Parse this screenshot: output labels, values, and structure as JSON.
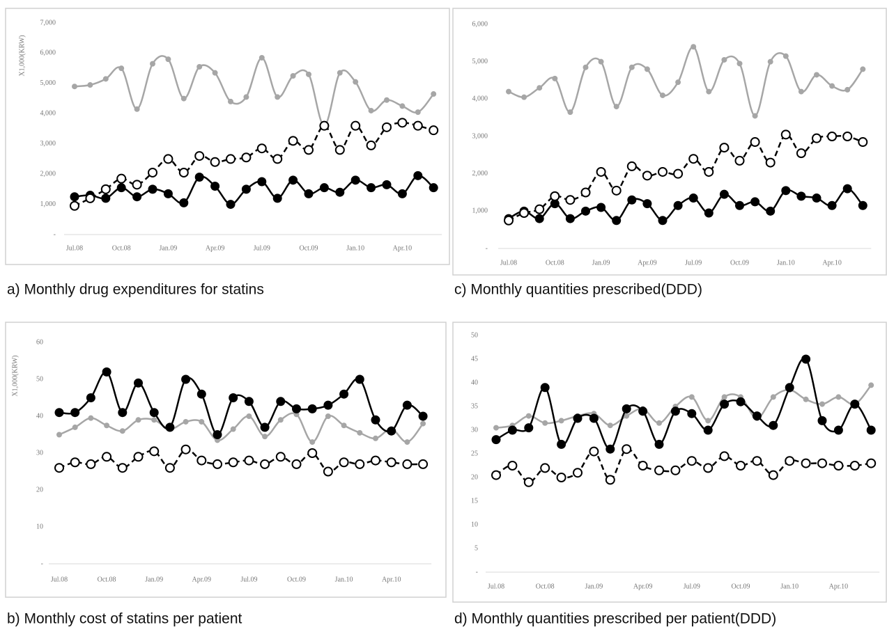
{
  "chart_data": [
    {
      "type": "line",
      "title": "a)  Monthly drug expenditures for statins",
      "y_label": "X1,000(KRW)",
      "categories": [
        "Jul.08",
        null,
        null,
        "Oct.08",
        null,
        null,
        "Jan.09",
        null,
        null,
        "Apr.09",
        null,
        null,
        "Jul.09",
        null,
        null,
        "Oct.09",
        null,
        null,
        "Jan.10",
        null,
        null,
        "Apr.10",
        null,
        null
      ],
      "series": [
        {
          "color": "#a6a6a6",
          "line_style": "solid",
          "marker": "small",
          "values": [
            4900,
            4950,
            5150,
            5500,
            4150,
            5650,
            5800,
            4500,
            5550,
            5350,
            4400,
            4550,
            5850,
            4550,
            5250,
            5300,
            3600,
            5350,
            5050,
            4100,
            4450,
            4250,
            4050,
            4650
          ]
        },
        {
          "color": "#000000",
          "line_style": "solid",
          "marker": "filled",
          "values": [
            1250,
            1300,
            1200,
            1550,
            1250,
            1500,
            1350,
            1050,
            1900,
            1600,
            1000,
            1500,
            1750,
            1200,
            1800,
            1350,
            1550,
            1400,
            1800,
            1550,
            1650,
            1350,
            1950,
            1550
          ]
        },
        {
          "color": "#000000",
          "line_style": "dashed",
          "marker": "open",
          "values": [
            950,
            1200,
            1500,
            1850,
            1650,
            2050,
            2500,
            2050,
            2600,
            2400,
            2500,
            2550,
            2850,
            2500,
            3100,
            2800,
            3600,
            2800,
            3600,
            2950,
            3550,
            3700,
            3600,
            3450
          ]
        }
      ],
      "ylim": [
        0,
        7000
      ],
      "yticks": [
        {
          "value": 0,
          "label": "-"
        },
        {
          "value": 1000,
          "label": "1,000"
        },
        {
          "value": 2000,
          "label": "2,000"
        },
        {
          "value": 3000,
          "label": "3,000"
        },
        {
          "value": 4000,
          "label": "4,000"
        },
        {
          "value": 5000,
          "label": "5,000"
        },
        {
          "value": 6000,
          "label": "6,000"
        },
        {
          "value": 7000,
          "label": "7,000"
        }
      ]
    },
    {
      "type": "line",
      "title": "b) Monthly cost of statins per patient",
      "y_label": "X1,000(KRW)",
      "categories": [
        "Jul.08",
        null,
        null,
        "Oct.08",
        null,
        null,
        "Jan.09",
        null,
        null,
        "Apr.09",
        null,
        null,
        "Jul.09",
        null,
        null,
        "Oct.09",
        null,
        null,
        "Jan.10",
        null,
        null,
        "Apr.10",
        null,
        null
      ],
      "series": [
        {
          "color": "#a6a6a6",
          "line_style": "solid",
          "marker": "small",
          "values": [
            35,
            37,
            39.5,
            37.5,
            36,
            39,
            39,
            36.5,
            38.5,
            38.5,
            33.5,
            36.5,
            40,
            34.5,
            39,
            40.5,
            33,
            40,
            37.5,
            35.5,
            34,
            36.5,
            33,
            38
          ]
        },
        {
          "color": "#000000",
          "line_style": "solid",
          "marker": "filled",
          "values": [
            41,
            41,
            45,
            52,
            41,
            49,
            41,
            37,
            50,
            46,
            35,
            45,
            44,
            37,
            44,
            42,
            42,
            43,
            46,
            50,
            39,
            36,
            43,
            40
          ]
        },
        {
          "color": "#000000",
          "line_style": "dashed",
          "marker": "open",
          "values": [
            26,
            27.5,
            27,
            29,
            26,
            29,
            30.5,
            26,
            31,
            28,
            27,
            27.5,
            28,
            27,
            29,
            27,
            30,
            25,
            27.5,
            27,
            28,
            27.5,
            27,
            27
          ]
        }
      ],
      "ylim": [
        0,
        60
      ],
      "yticks": [
        {
          "value": 0,
          "label": "-"
        },
        10,
        20,
        30,
        40,
        50,
        60
      ]
    },
    {
      "type": "line",
      "title": "c) Monthly quantities prescribed(DDD)",
      "categories": [
        "Jul.08",
        null,
        null,
        "Oct.08",
        null,
        null,
        "Jan.09",
        null,
        null,
        "Apr.09",
        null,
        null,
        "Jul.09",
        null,
        null,
        "Oct.09",
        null,
        null,
        "Jan.10",
        null,
        null,
        "Apr.10",
        null,
        null
      ],
      "series": [
        {
          "color": "#a6a6a6",
          "line_style": "solid",
          "marker": "small",
          "values": [
            4200,
            4050,
            4300,
            4550,
            3650,
            4850,
            5000,
            3800,
            4850,
            4800,
            4100,
            4450,
            5400,
            4200,
            5050,
            4950,
            3550,
            5000,
            5150,
            4200,
            4650,
            4350,
            4250,
            4800
          ]
        },
        {
          "color": "#000000",
          "line_style": "solid",
          "marker": "filled",
          "values": [
            800,
            1000,
            800,
            1200,
            800,
            1000,
            1100,
            750,
            1300,
            1200,
            750,
            1150,
            1350,
            950,
            1450,
            1150,
            1250,
            1000,
            1550,
            1400,
            1350,
            1150,
            1600,
            1150
          ]
        },
        {
          "color": "#000000",
          "line_style": "dashed",
          "marker": "open",
          "values": [
            750,
            950,
            1050,
            1400,
            1300,
            1500,
            2050,
            1550,
            2200,
            1950,
            2050,
            2000,
            2400,
            2050,
            2700,
            2350,
            2850,
            2300,
            3050,
            2550,
            2950,
            3000,
            3000,
            2850
          ]
        }
      ],
      "ylim": [
        0,
        6000
      ],
      "yticks": [
        {
          "value": 0,
          "label": "-"
        },
        {
          "value": 1000,
          "label": "1,000"
        },
        {
          "value": 2000,
          "label": "2,000"
        },
        {
          "value": 3000,
          "label": "3,000"
        },
        {
          "value": 4000,
          "label": "4,000"
        },
        {
          "value": 5000,
          "label": "5,000"
        },
        {
          "value": 6000,
          "label": "6,000"
        }
      ]
    },
    {
      "type": "line",
      "title": "d) Monthly quantities prescribed per patient(DDD)",
      "categories": [
        "Jul.08",
        null,
        null,
        "Oct.08",
        null,
        null,
        "Jan.09",
        null,
        null,
        "Apr.09",
        null,
        null,
        "Jul.09",
        null,
        null,
        "Oct.09",
        null,
        null,
        "Jan.10",
        null,
        null,
        "Apr.10",
        null,
        null
      ],
      "series": [
        {
          "color": "#a6a6a6",
          "line_style": "solid",
          "marker": "small",
          "values": [
            30.5,
            31,
            33,
            31.5,
            32,
            33,
            33.5,
            31,
            33,
            34.5,
            31.5,
            35,
            37,
            32,
            37,
            37,
            32.5,
            37,
            38.5,
            36.5,
            35.5,
            37,
            35.5,
            39.5
          ]
        },
        {
          "color": "#000000",
          "line_style": "solid",
          "marker": "filled",
          "values": [
            28,
            30,
            30.5,
            39,
            27,
            32.5,
            32.5,
            26,
            34.5,
            34,
            27,
            34,
            33.5,
            30,
            35.5,
            36,
            33,
            31,
            39,
            45,
            32,
            30,
            35.5,
            30
          ]
        },
        {
          "color": "#000000",
          "line_style": "dashed",
          "marker": "open",
          "values": [
            20.5,
            22.5,
            19,
            22,
            20,
            21,
            25.5,
            19.5,
            26,
            22.5,
            21.5,
            21.5,
            23.5,
            22,
            24.5,
            22.5,
            23.5,
            20.5,
            23.5,
            23,
            23,
            22.5,
            22.5,
            23
          ]
        }
      ],
      "ylim": [
        0,
        50
      ],
      "yticks": [
        {
          "value": 0,
          "label": "-"
        },
        5,
        10,
        15,
        20,
        25,
        30,
        35,
        40,
        45,
        50
      ]
    }
  ]
}
